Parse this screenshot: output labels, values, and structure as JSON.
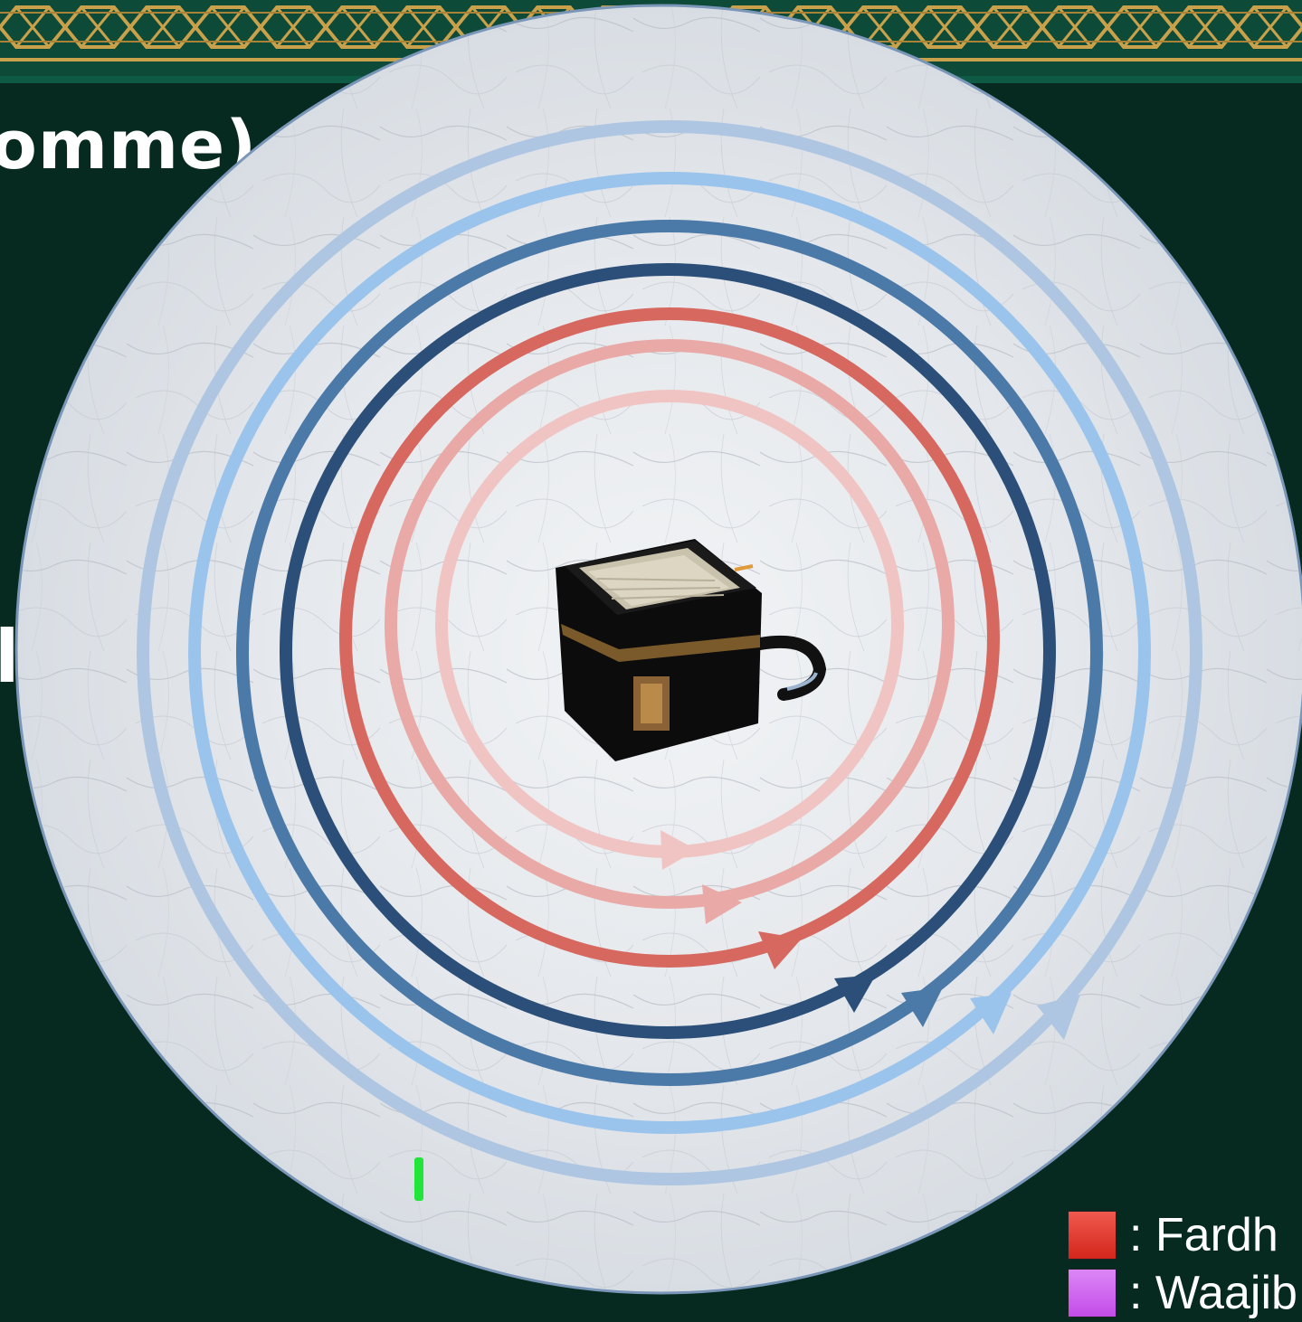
{
  "header": {
    "title_fragment": "omme)",
    "side_fragment": "l"
  },
  "legend": [
    {
      "label": ": Fardh",
      "color": "#d4261c"
    },
    {
      "label": ": Waajib",
      "color": "#c34ce8"
    }
  ],
  "colors": {
    "background": "#072a20",
    "banner_green": "#0d4a38",
    "banner_gold": "#c9a14a",
    "marble": "#e8ebee",
    "disc_border": "#7a96b8"
  },
  "rings": [
    {
      "ring": 1,
      "color": "#f1c4c4"
    },
    {
      "ring": 2,
      "color": "#e9a9a6"
    },
    {
      "ring": 3,
      "color": "#d7685f"
    },
    {
      "ring": 4,
      "color": "#2b4f78"
    },
    {
      "ring": 5,
      "color": "#4b79a8"
    },
    {
      "ring": 6,
      "color": "#9bc4ec"
    },
    {
      "ring": 7,
      "color": "#aec6e2"
    }
  ],
  "icons": {
    "center": "kaaba-icon",
    "marker": "green-marker-icon"
  }
}
